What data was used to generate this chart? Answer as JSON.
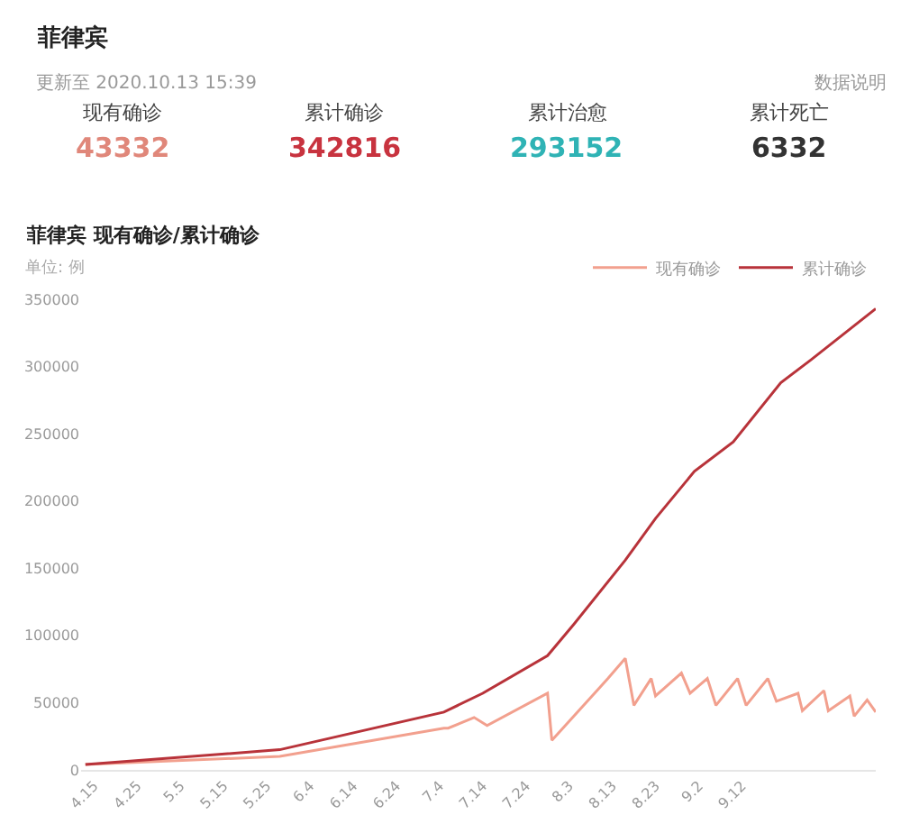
{
  "chart_data": [
    {
      "type": "other",
      "title": "菲律宾",
      "subtitle": "更新至 2020.10.13 15:39",
      "annotations": [
        "数据说明",
        "现有确诊",
        "43332",
        "累计确诊",
        "342816",
        "累计治愈",
        "293152",
        "累计死亡",
        "6332"
      ],
      "colors": [
        "#e0877a",
        "#c8333f",
        "#2fb3b5",
        "#333333"
      ]
    },
    {
      "type": "line",
      "title": "菲律宾 现有确诊/累计确诊",
      "ylabel": "单位: 例",
      "x": [
        "--04-13",
        "--05-28",
        "--07-05",
        "--07-06",
        "--07-12",
        "--07-15",
        "--07-29",
        "--07-30",
        "--08-12",
        "--08-16",
        "--08-18",
        "--08-22",
        "--08-23",
        "--08-29",
        "--08-31",
        "--09-04",
        "--09-06",
        "--09-11",
        "--09-13",
        "--09-18",
        "--09-20",
        "--09-25",
        "--09-26",
        "--10-01",
        "--10-02",
        "--10-07",
        "--10-08",
        "--10-11",
        "--10-13"
      ],
      "series": [
        {
          "name": "现有确诊",
          "color": "#f2a08e",
          "values": [
            4000,
            10000,
            31000,
            31000,
            39000,
            33000,
            57000,
            22000,
            68000,
            83000,
            48000,
            68000,
            55000,
            72000,
            57000,
            68000,
            48000,
            68000,
            48000,
            68000,
            51000,
            57000,
            44000,
            59000,
            44000,
            55000,
            40000,
            52000,
            43000
          ]
        },
        {
          "name": "累计确诊",
          "color": "#b8333a",
          "x": [
            "--04-13",
            "--05-28",
            "--07-05",
            "--07-14",
            "--07-29",
            "--08-04",
            "--08-16",
            "--08-23",
            "--09-01",
            "--09-10",
            "--09-21",
            "--09-28",
            "--10-13"
          ],
          "values": [
            4000,
            15000,
            43000,
            57000,
            85000,
            108000,
            156000,
            187000,
            222000,
            244000,
            288000,
            305000,
            343000
          ]
        }
      ],
      "xlim": [
        "--04-12",
        "--10-13"
      ],
      "xticks": [
        {
          "value": "--04-15",
          "label": "4.15"
        },
        {
          "value": "--04-25",
          "label": "4.25"
        },
        {
          "value": "--05-05",
          "label": "5.5"
        },
        {
          "value": "--05-15",
          "label": "5.15"
        },
        {
          "value": "--05-25",
          "label": "5.25"
        },
        {
          "value": "--06-04",
          "label": "6.4"
        },
        {
          "value": "--06-14",
          "label": "6.14"
        },
        {
          "value": "--06-24",
          "label": "6.24"
        },
        {
          "value": "--07-04",
          "label": "7.4"
        },
        {
          "value": "--07-14",
          "label": "7.14"
        },
        {
          "value": "--07-24",
          "label": "7.24"
        },
        {
          "value": "--08-03",
          "label": "8.3"
        },
        {
          "value": "--08-13",
          "label": "8.13"
        },
        {
          "value": "--08-23",
          "label": "8.23"
        },
        {
          "value": "--09-02",
          "label": "9.2"
        },
        {
          "value": "--09-12",
          "label": "9.12"
        }
      ],
      "ylim": [
        0,
        350000
      ],
      "yticks": [
        0,
        50000,
        100000,
        150000,
        200000,
        250000,
        300000,
        350000
      ],
      "legend": "top right",
      "marker": "none",
      "line_style": "solid"
    }
  ]
}
